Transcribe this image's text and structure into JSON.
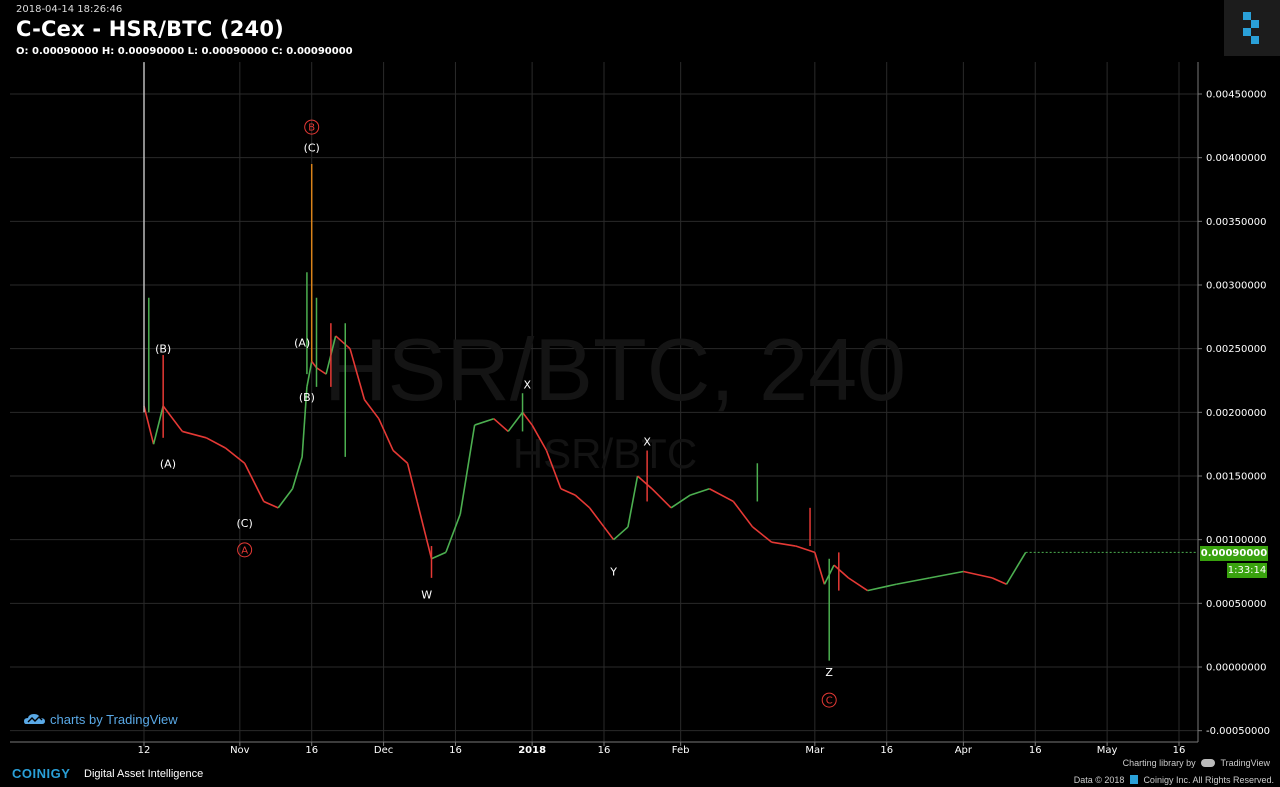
{
  "header": {
    "timestamp": "2018-04-14 18:26:46",
    "title": "C-Cex - HSR/BTC (240)",
    "ohlc": "O: 0.00090000 H: 0.00090000 L: 0.00090000 C: 0.00090000"
  },
  "watermark": {
    "big": "HSR/BTC, 240",
    "small": "HSR/BTC"
  },
  "badges": {
    "price": "0.00090000",
    "countdown": "1:33:14"
  },
  "footer": {
    "tv_link": "charts by TradingView",
    "brand": "COINIGY",
    "brand_sub": "Digital Asset Intelligence",
    "charting_library": "Charting library by",
    "tradingview": "TradingView",
    "copyright": "Data © 2018",
    "coinigy_inc": "Coinigy Inc. All Rights Reserved."
  },
  "colors": {
    "up": "#4caf50",
    "down": "#e53935",
    "grid": "#2a2a2a",
    "wave_red": "#e53935",
    "badge": "#39a20e"
  },
  "chart_data": {
    "type": "line",
    "x_ticks": [
      "12",
      "Nov",
      "16",
      "Dec",
      "16",
      "2018",
      "16",
      "Feb",
      "Mar",
      "16",
      "Apr",
      "16",
      "May",
      "16"
    ],
    "y_ticks": [
      "0.00450000",
      "0.00400000",
      "0.00350000",
      "0.00300000",
      "0.00250000",
      "0.00200000",
      "0.00150000",
      "0.00100000",
      "0.00050000",
      "0.00000000",
      "-0.00050000"
    ],
    "ylim": [
      -0.0005,
      0.0047
    ],
    "series": [
      {
        "x": [
          "2017-10-12",
          "2017-10-14",
          "2017-10-16",
          "2017-10-20",
          "2017-10-25",
          "2017-10-29",
          "2017-11-02",
          "2017-11-06",
          "2017-11-09",
          "2017-11-12",
          "2017-11-14",
          "2017-11-15",
          "2017-11-16",
          "2017-11-17",
          "2017-11-19",
          "2017-11-21",
          "2017-11-24",
          "2017-11-27",
          "2017-11-30",
          "2017-12-03",
          "2017-12-06",
          "2017-12-08",
          "2017-12-11",
          "2017-12-14",
          "2017-12-17",
          "2017-12-20",
          "2017-12-24",
          "2017-12-27",
          "2017-12-30",
          "2018-01-01",
          "2018-01-04",
          "2018-01-07",
          "2018-01-10",
          "2018-01-13",
          "2018-01-16",
          "2018-01-18",
          "2018-01-21",
          "2018-01-23",
          "2018-01-26",
          "2018-01-30",
          "2018-02-03",
          "2018-02-07",
          "2018-02-12",
          "2018-02-16",
          "2018-02-20",
          "2018-02-25",
          "2018-03-01",
          "2018-03-03",
          "2018-03-05",
          "2018-03-08",
          "2018-03-12",
          "2018-03-18",
          "2018-03-25",
          "2018-04-01",
          "2018-04-07",
          "2018-04-10",
          "2018-04-14"
        ],
        "y": [
          0.00205,
          0.00175,
          0.00205,
          0.00185,
          0.0018,
          0.00172,
          0.0016,
          0.0013,
          0.00125,
          0.0014,
          0.00165,
          0.0022,
          0.0024,
          0.00235,
          0.0023,
          0.0026,
          0.0025,
          0.0021,
          0.00195,
          0.0017,
          0.0016,
          0.0013,
          0.00085,
          0.0009,
          0.0012,
          0.0019,
          0.00195,
          0.00185,
          0.002,
          0.0019,
          0.0017,
          0.0014,
          0.00135,
          0.00125,
          0.0011,
          0.001,
          0.0011,
          0.0015,
          0.0014,
          0.00125,
          0.00135,
          0.0014,
          0.0013,
          0.0011,
          0.00098,
          0.00095,
          0.0009,
          0.00065,
          0.0008,
          0.0007,
          0.0006,
          0.00065,
          0.0007,
          0.00075,
          0.0007,
          0.00065,
          0.0009
        ]
      }
    ],
    "wicks": [
      {
        "x": "2017-10-12",
        "high": 0.00475,
        "low": 0.002
      },
      {
        "x": "2017-10-13",
        "high": 0.0029,
        "low": 0.002
      },
      {
        "x": "2017-10-16",
        "high": 0.00245,
        "low": 0.0018
      },
      {
        "x": "2017-11-15",
        "high": 0.0031,
        "low": 0.0023
      },
      {
        "x": "2017-11-16",
        "high": 0.00395,
        "low": 0.0024
      },
      {
        "x": "2017-11-17",
        "high": 0.0029,
        "low": 0.0022
      },
      {
        "x": "2017-11-20",
        "high": 0.0027,
        "low": 0.0022
      },
      {
        "x": "2017-11-23",
        "high": 0.0027,
        "low": 0.00165
      },
      {
        "x": "2017-12-11",
        "high": 0.00095,
        "low": 0.0007
      },
      {
        "x": "2017-12-30",
        "high": 0.00215,
        "low": 0.00185
      },
      {
        "x": "2018-01-25",
        "high": 0.0017,
        "low": 0.0013
      },
      {
        "x": "2018-02-17",
        "high": 0.0016,
        "low": 0.0013
      },
      {
        "x": "2018-02-28",
        "high": 0.00125,
        "low": 0.00095
      },
      {
        "x": "2018-03-04",
        "high": 0.00085,
        "low": 5e-05
      },
      {
        "x": "2018-03-06",
        "high": 0.0009,
        "low": 0.0006
      }
    ],
    "annotations": [
      {
        "label": "(B)",
        "x": "2017-10-16",
        "y": 0.0025,
        "color": "white"
      },
      {
        "label": "(A)",
        "x": "2017-10-17",
        "y": 0.0016,
        "color": "white"
      },
      {
        "label": "(C)",
        "x": "2017-11-02",
        "y": 0.00113,
        "color": "white"
      },
      {
        "label": "A",
        "x": "2017-11-02",
        "y": 0.00092,
        "color": "red",
        "circled": true
      },
      {
        "label": "(A)",
        "x": "2017-11-14",
        "y": 0.00255,
        "color": "white"
      },
      {
        "label": "(B)",
        "x": "2017-11-15",
        "y": 0.00212,
        "color": "white"
      },
      {
        "label": "B",
        "x": "2017-11-16",
        "y": 0.00424,
        "color": "red",
        "circled": true
      },
      {
        "label": "(C)",
        "x": "2017-11-16",
        "y": 0.00408,
        "color": "white"
      },
      {
        "label": "W",
        "x": "2017-12-10",
        "y": 0.00057,
        "color": "white"
      },
      {
        "label": "X",
        "x": "2017-12-31",
        "y": 0.00222,
        "color": "white"
      },
      {
        "label": "Y",
        "x": "2018-01-18",
        "y": 0.00075,
        "color": "white"
      },
      {
        "label": "X",
        "x": "2018-01-25",
        "y": 0.00177,
        "color": "white"
      },
      {
        "label": "Z",
        "x": "2018-03-04",
        "y": -4e-05,
        "color": "white"
      },
      {
        "label": "C",
        "x": "2018-03-04",
        "y": -0.00026,
        "color": "red",
        "circled": true
      }
    ],
    "grid": true
  }
}
